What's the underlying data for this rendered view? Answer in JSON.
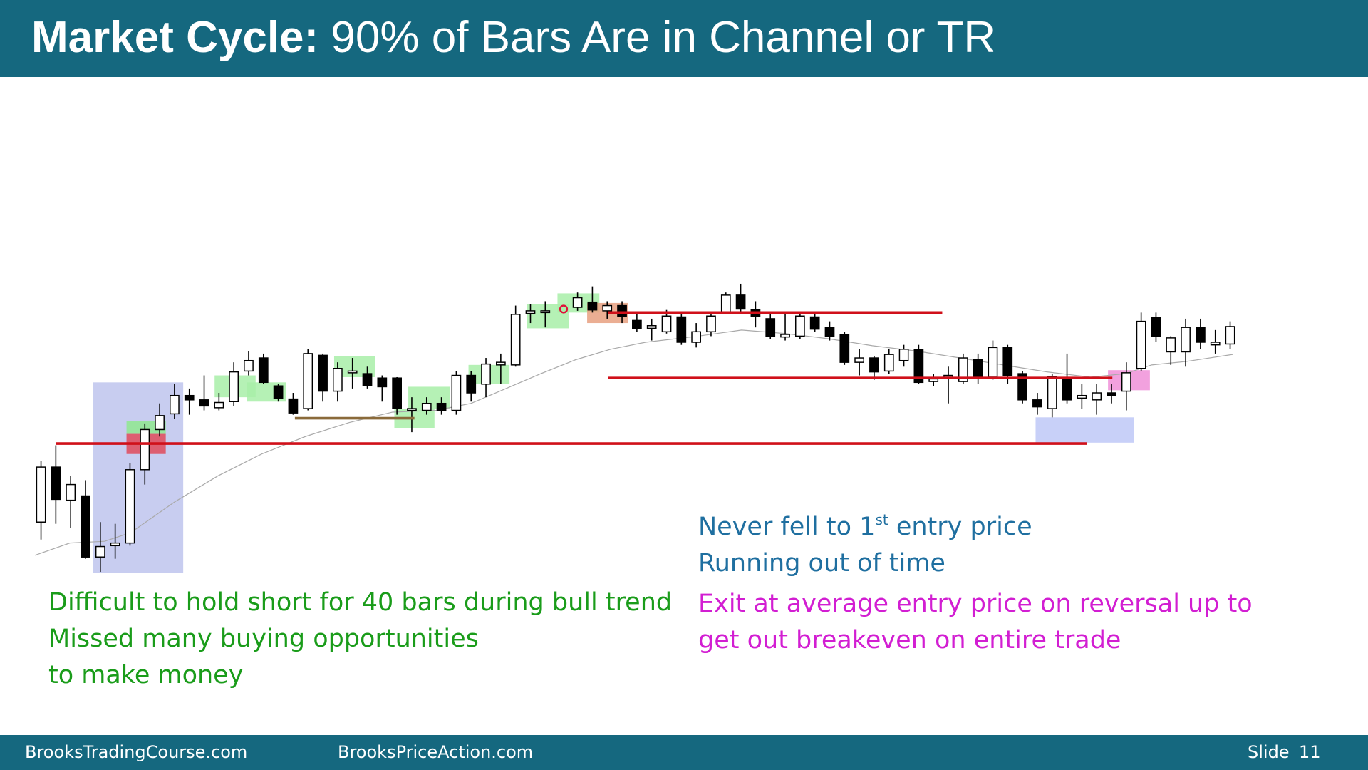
{
  "header": {
    "title_bold": "Market Cycle:",
    "title": "90% of Bars Are in Channel or TR"
  },
  "notes_left": [
    "Difficult to hold short for 40 bars during bull trend",
    "Missed many buying opportunities",
    "to make money"
  ],
  "notes_right_blue": {
    "line1": {
      "before": "Never fell to 1",
      "sup": "st",
      "after": "entry price"
    },
    "line2": "Running out of time"
  },
  "notes_right_magenta": [
    "Exit at average entry price on reversal up to",
    "get out breakeven on entire trade"
  ],
  "footer": {
    "left": "BrooksTradingCourse.com",
    "center": "BrooksPriceAction.com",
    "slide_label": "Slide",
    "slide_number": "11"
  }
}
